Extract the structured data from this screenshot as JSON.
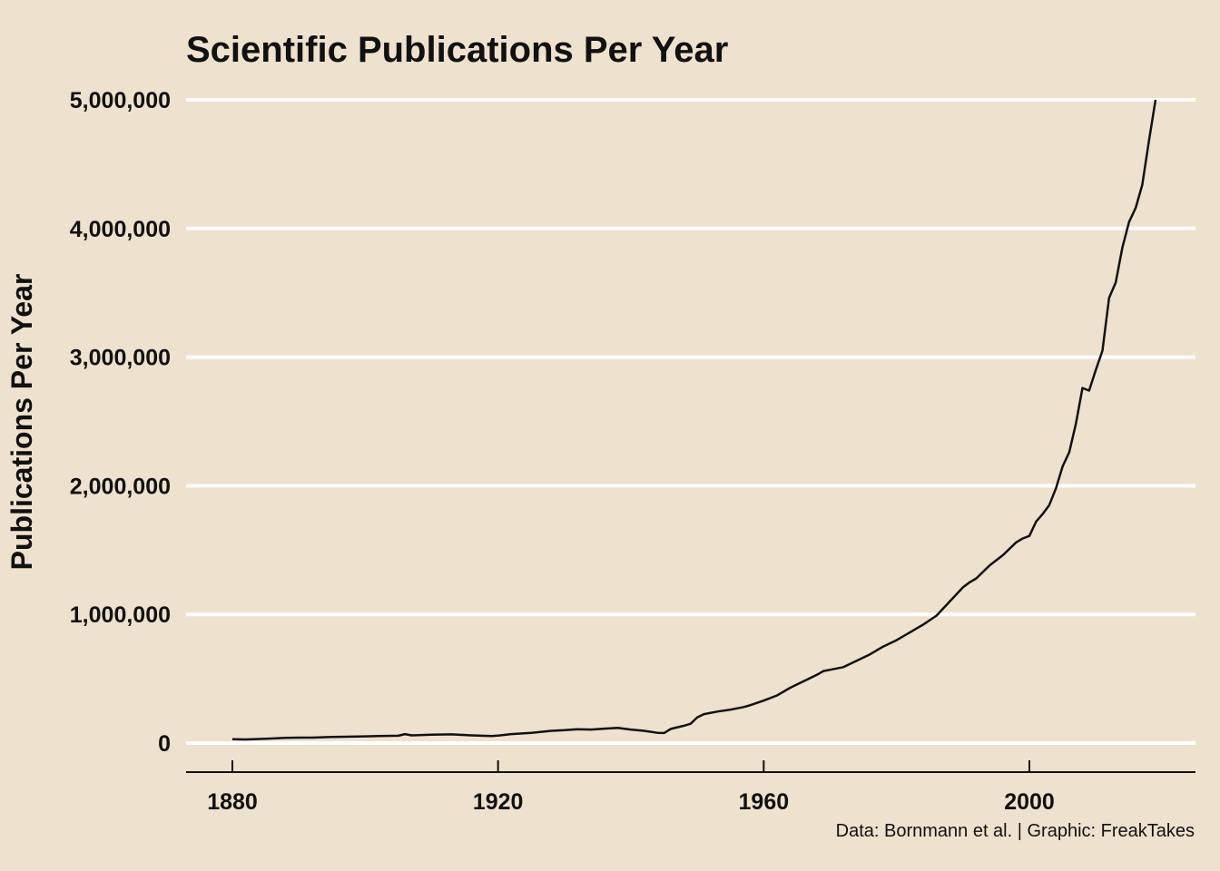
{
  "chart_data": {
    "type": "line",
    "title": "Scientific Publications Per Year",
    "xlabel": "",
    "ylabel": "Publications Per Year",
    "caption": "Data: Bornmann et al. | Graphic: FreakTakes",
    "xlim": [
      1873,
      2025
    ],
    "ylim": [
      -200000,
      5000000
    ],
    "x_ticks": [
      1880,
      1920,
      1960,
      2000
    ],
    "x_tick_labels": [
      "1880",
      "1920",
      "1960",
      "2000"
    ],
    "y_ticks": [
      0,
      1000000,
      2000000,
      3000000,
      4000000,
      5000000
    ],
    "y_tick_labels": [
      "0",
      "1,000,000",
      "2,000,000",
      "3,000,000",
      "4,000,000",
      "5,000,000"
    ],
    "grid": "horizontal",
    "colors": {
      "background": "#EEE1CE",
      "grid": "#FFFFFF",
      "line": "#111111",
      "axis": "#111111"
    },
    "series": [
      {
        "name": "Publications",
        "x": [
          1880,
          1882,
          1885,
          1888,
          1890,
          1892,
          1895,
          1898,
          1900,
          1902,
          1905,
          1906,
          1907,
          1910,
          1913,
          1916,
          1919,
          1920,
          1922,
          1925,
          1928,
          1930,
          1932,
          1934,
          1936,
          1938,
          1940,
          1942,
          1944,
          1945,
          1946,
          1948,
          1949,
          1950,
          1951,
          1953,
          1955,
          1957,
          1958,
          1960,
          1962,
          1964,
          1966,
          1968,
          1969,
          1970,
          1972,
          1974,
          1976,
          1978,
          1980,
          1982,
          1984,
          1986,
          1988,
          1990,
          1991,
          1992,
          1994,
          1996,
          1998,
          1999,
          2000,
          2001,
          2002,
          2003,
          2004,
          2005,
          2006,
          2007,
          2008,
          2009,
          2010,
          2011,
          2012,
          2013,
          2014,
          2015,
          2016,
          2017,
          2018,
          2019
        ],
        "values": [
          30000,
          28000,
          33000,
          40000,
          42000,
          42000,
          48000,
          50000,
          52000,
          54000,
          57000,
          70000,
          60000,
          65000,
          68000,
          60000,
          55000,
          58000,
          70000,
          80000,
          95000,
          100000,
          108000,
          105000,
          112000,
          118000,
          105000,
          95000,
          80000,
          78000,
          110000,
          135000,
          150000,
          200000,
          225000,
          245000,
          260000,
          280000,
          295000,
          330000,
          370000,
          430000,
          480000,
          530000,
          560000,
          570000,
          590000,
          640000,
          690000,
          750000,
          800000,
          860000,
          920000,
          990000,
          1100000,
          1210000,
          1250000,
          1280000,
          1380000,
          1460000,
          1560000,
          1590000,
          1610000,
          1720000,
          1780000,
          1850000,
          1980000,
          2150000,
          2260000,
          2480000,
          2760000,
          2740000,
          2900000,
          3050000,
          3460000,
          3580000,
          3850000,
          4050000,
          4160000,
          4340000,
          4680000,
          5000000
        ]
      }
    ]
  }
}
